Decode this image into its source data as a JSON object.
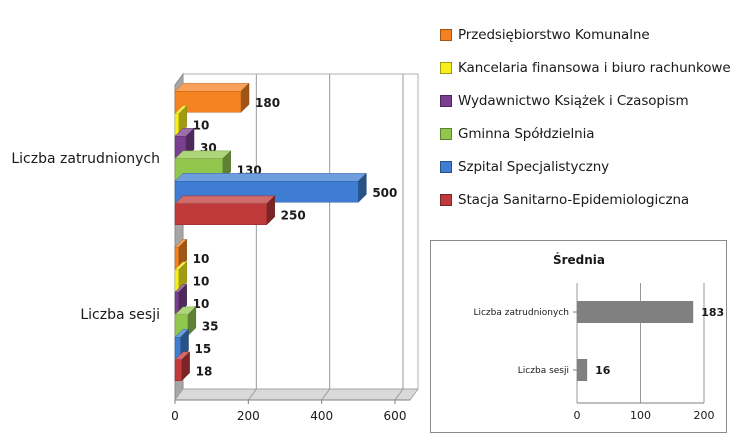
{
  "chart_data": [
    {
      "type": "bar",
      "orientation": "horizontal",
      "categories": [
        "Liczba zatrudnionych",
        "Liczba sesji"
      ],
      "series": [
        {
          "name": "Przedsiębiorstwo Komunalne",
          "color": "#F58220",
          "values": [
            180,
            10
          ]
        },
        {
          "name": "Kancelaria finansowa i biuro rachunkowe",
          "color": "#F7EE1B",
          "values": [
            10,
            10
          ]
        },
        {
          "name": "Wydawnictwo Książek i Czasopism",
          "color": "#7A3F8E",
          "values": [
            30,
            10
          ]
        },
        {
          "name": "Gminna Spółdzielnia",
          "color": "#92C74E",
          "values": [
            130,
            35
          ]
        },
        {
          "name": "Szpital Specjalistyczny",
          "color": "#3E7DD1",
          "values": [
            500,
            15
          ]
        },
        {
          "name": "Stacja Sanitarno-Epidemiologiczna",
          "color": "#C0393B",
          "values": [
            250,
            18
          ]
        }
      ],
      "x_ticks": [
        "0",
        "200",
        "400",
        "600"
      ],
      "xlim": [
        0,
        600
      ],
      "legend": "right",
      "grid": true,
      "style": "3d"
    },
    {
      "type": "bar",
      "orientation": "horizontal",
      "title": "Średnia",
      "categories": [
        "Liczba zatrudnionych",
        "Liczba sesji"
      ],
      "values": [
        183,
        16
      ],
      "color": "#808080",
      "x_ticks": [
        "0",
        "100",
        "200"
      ],
      "xlim": [
        0,
        200
      ],
      "grid": true
    }
  ]
}
